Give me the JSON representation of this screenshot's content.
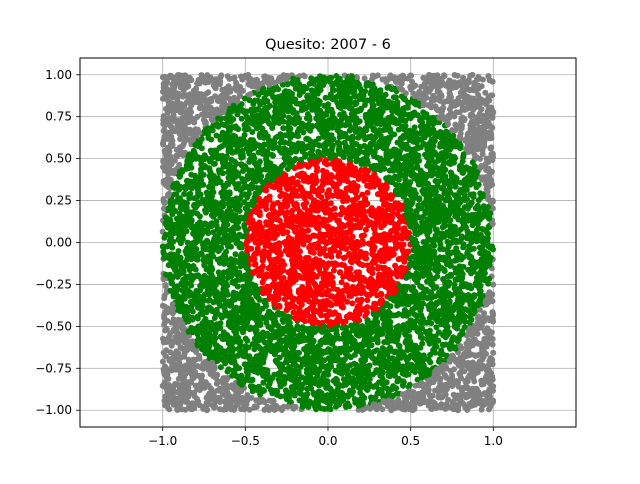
{
  "chart_data": {
    "type": "scatter",
    "title": "Quesito: 2007 - 6",
    "xlabel": "",
    "ylabel": "",
    "xlim": [
      -1.5,
      1.5
    ],
    "ylim": [
      -1.1,
      1.1
    ],
    "grid": true,
    "x_ticks": [
      -1.0,
      -0.5,
      0.0,
      0.5,
      1.0
    ],
    "x_tick_labels": [
      "−1.0",
      "−0.5",
      "0.0",
      "0.5",
      "1.0"
    ],
    "y_ticks": [
      1.0,
      0.75,
      0.5,
      0.25,
      0.0,
      -0.25,
      -0.5,
      -0.75,
      -1.0
    ],
    "y_tick_labels": [
      "1.00",
      "0.75",
      "0.50",
      "0.25",
      "0.00",
      "−0.25",
      "−0.50",
      "−0.75",
      "−1.00"
    ],
    "sample_domain": {
      "x": [
        -1.0,
        1.0
      ],
      "y": [
        -1.0,
        1.0
      ]
    },
    "regions": [
      {
        "color": "#808080",
        "rule": "r > 1"
      },
      {
        "color": "#008000",
        "rule": "0.5 < r <= 1"
      },
      {
        "color": "#ff0000",
        "rule": "r <= 0.5"
      }
    ]
  }
}
